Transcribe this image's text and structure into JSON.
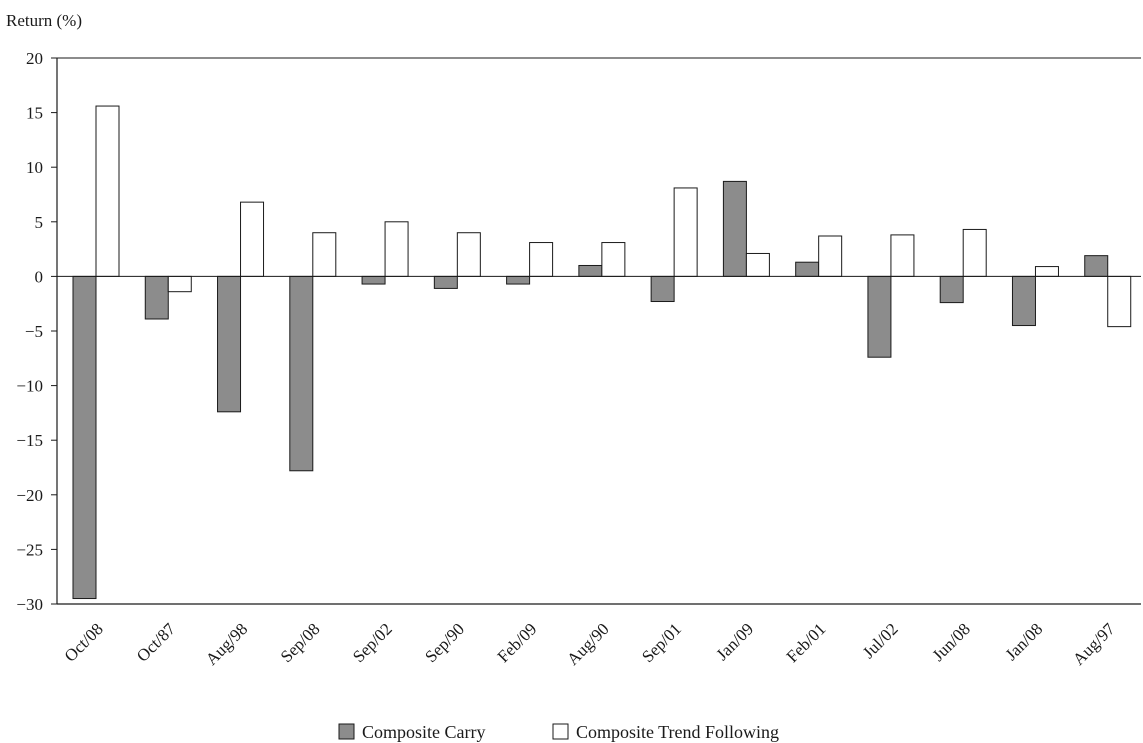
{
  "chart_data": {
    "type": "bar",
    "ylabel": "Return (%)",
    "ylim": [
      -30,
      20
    ],
    "yticks": [
      20,
      15,
      10,
      5,
      0,
      -5,
      -10,
      -15,
      -20,
      -25,
      -30
    ],
    "ytick_labels": [
      "20",
      "15",
      "10",
      "5",
      "0",
      "−5",
      "−10",
      "−15",
      "−20",
      "−25",
      "−30"
    ],
    "grid": false,
    "legend_position": "bottom-center",
    "categories": [
      "Oct/08",
      "Oct/87",
      "Aug/98",
      "Sep/08",
      "Sep/02",
      "Sep/90",
      "Feb/09",
      "Aug/90",
      "Sep/01",
      "Jan/09",
      "Feb/01",
      "Jul/02",
      "Jun/08",
      "Jan/08",
      "Aug/97"
    ],
    "series": [
      {
        "name": "Composite Carry",
        "color": "#8c8c8c",
        "values": [
          -29.5,
          -3.9,
          -12.4,
          -17.8,
          -0.7,
          -1.1,
          -0.7,
          1.0,
          -2.3,
          8.7,
          1.3,
          -7.4,
          -2.4,
          -4.5,
          1.9
        ]
      },
      {
        "name": "Composite Trend Following",
        "color": "#ffffff",
        "values": [
          15.6,
          -1.4,
          6.8,
          4.0,
          5.0,
          4.0,
          3.1,
          3.1,
          8.1,
          2.1,
          3.7,
          3.8,
          4.3,
          0.9,
          -4.6
        ]
      }
    ]
  }
}
